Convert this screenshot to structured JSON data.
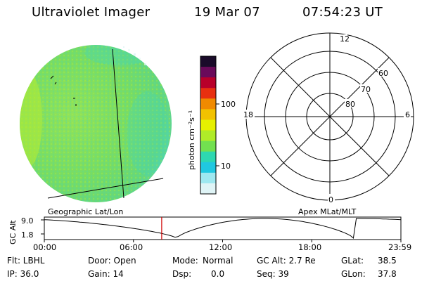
{
  "header": {
    "title": "Ultraviolet Imager",
    "date": "19 Mar 07",
    "time": "07:54:23 UT"
  },
  "image": {
    "projection_label": "Geographic Lat/Lon",
    "false_color_note": "green disk",
    "colors": {
      "disk_main": "#7fe06a",
      "disk_edge": "#a6ec3b",
      "disk_cyan": "#3ed8c8"
    }
  },
  "colorbar": {
    "unit_label": "photon cm⁻²s⁻¹",
    "tick_labels": [
      "100",
      "10"
    ],
    "colors_top_to_bottom": [
      "#1a0b2a",
      "#6a0a5a",
      "#b8002a",
      "#e83010",
      "#f08a00",
      "#f2c200",
      "#e6f000",
      "#b0ec28",
      "#72e050",
      "#2ed8b0",
      "#20c8e0",
      "#9ee8f0",
      "#dff4f6"
    ]
  },
  "polar": {
    "title": "Apex MLat/MLT",
    "lat_labels": [
      "60",
      "70",
      "80"
    ],
    "mlt_labels": {
      "top": "12",
      "right": "6",
      "bottom": "0",
      "left": "18"
    }
  },
  "altitude_plot": {
    "ylabel": "GC Alt",
    "y_ticks": [
      "9.0",
      "1.8"
    ],
    "x_ticks": [
      "00:00",
      "06:00",
      "12:00",
      "18:00",
      "23:59"
    ],
    "current_time_hours": 7.9,
    "marker_color": "#d00000"
  },
  "status": {
    "filter": "Flt: LBHL",
    "ip": "IP: 36.0",
    "door": "Door: Open",
    "gain": "Gain: 14",
    "mode_label": "Mode:",
    "mode_value": "Normal",
    "dsp_label": "Dsp:",
    "dsp_value": "0.0",
    "gc_alt": "GC Alt: 2.7 Re",
    "seq": "Seq: 39",
    "glat": "GLat:",
    "glat_value": "38.5",
    "glon": "GLon:",
    "glon_value": "37.8"
  }
}
